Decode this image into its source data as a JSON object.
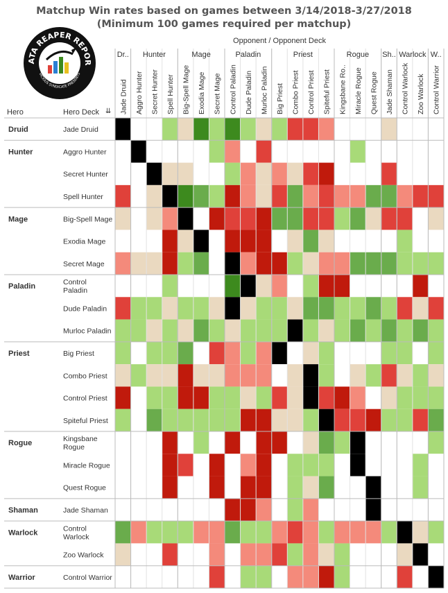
{
  "title_line1": "Matchup Win rates based on games between 3/14/2018-3/27/2018",
  "title_line2": "(Minimum 100 games required per matchup)",
  "opponent_header": "Opponent  /  Opponent Deck",
  "row_header_hero": "Hero",
  "row_header_deck": "Hero Deck",
  "logo": {
    "top_text": "DATA REAPER REPORT",
    "bottom_text": "VICIOUS SYNDICATE PRESENTS"
  },
  "colors": {
    "dark_green": "#3d8a1e",
    "mid_green": "#6aac4c",
    "light_green": "#a8da78",
    "tan": "#ead9c0",
    "salmon": "#f48a7b",
    "red": "#e0413a",
    "dark_red": "#c01a0c",
    "black": "#000000",
    "white": "#ffffff"
  },
  "chart_data": {
    "type": "heatmap",
    "title": "Matchup Win rates based on games between 3/14/2018-3/27/2018",
    "subtitle": "(Minimum 100 games required per matchup)",
    "value_scale": [
      "dark_red",
      "red",
      "salmon",
      "tan",
      "light_green",
      "mid_green",
      "dark_green"
    ],
    "col_groups": [
      {
        "label": "Dr..",
        "span": 1
      },
      {
        "label": "Hunter",
        "span": 3
      },
      {
        "label": "Mage",
        "span": 3
      },
      {
        "label": "Paladin",
        "span": 3
      },
      {
        "label": "Priest",
        "span": 4
      },
      {
        "label": "Rogue",
        "span": 3
      },
      {
        "label": "Sh..",
        "span": 1
      },
      {
        "label": "Warlock",
        "span": 2
      },
      {
        "label": "W..",
        "span": 1
      }
    ],
    "columns": [
      "Jade Druid",
      "Aggro Hunter",
      "Secret Hunter",
      "Spell Hunter",
      "Big-Spell Mage",
      "Exodia Mage",
      "Secret Mage",
      "Control Paladin",
      "Dude Paladin",
      "Murloc Paladin",
      "Big Priest",
      "Combo Priest",
      "Control Priest",
      "Spiteful Priest",
      "Kingsbane Ro..",
      "Miracle Rogue",
      "Quest Rogue",
      "Jade Shaman",
      "Control Warlock",
      "Zoo Warlock",
      "Control Warrior"
    ],
    "row_groups": [
      {
        "label": "Druid",
        "span": 1
      },
      {
        "label": "Hunter",
        "span": 3
      },
      {
        "label": "Mage",
        "span": 3
      },
      {
        "label": "Paladin",
        "span": 3
      },
      {
        "label": "Priest",
        "span": 4
      },
      {
        "label": "Rogue",
        "span": 3
      },
      {
        "label": "Shaman",
        "span": 1
      },
      {
        "label": "Warlock",
        "span": 2
      },
      {
        "label": "Warrior",
        "span": 1
      }
    ],
    "rows": [
      {
        "deck": [
          "Jade Druid"
        ],
        "cells": "K003T4G4LT3RRSW9AT"
      },
      {
        "deck": [
          "Aggro Hunter"
        ],
        "cells": "0K00003S0R00000G00"
      },
      {
        "deck": [
          "Secret Hunter"
        ],
        "cells": "00KTT003STSTRX000R00"
      },
      {
        "deck": [
          "Spell Hunter"
        ],
        "cells": "R0TK4MLXSTRMSRSSMMSRRRM00"
      },
      {
        "deck": [
          "Big-Spell Mage"
        ],
        "cells": "T0TSK0XRRXMMRRGMTRR0T"
      },
      {
        "deck": [
          "Exodia Mage"
        ],
        "cells": "000XTK0XXX0TMT0000G00"
      },
      {
        "deck": [
          "Secret Mage"
        ],
        "cells": "STTXLM0KSXXGTSSMMMLLGTG"
      },
      {
        "deck": [
          "Control",
          "Paladin"
        ],
        "cells": "000L0004KTS0GXX0000X00"
      },
      {
        "deck": [
          "Dude Paladin"
        ],
        "cells": "RGGTLLTKTGGTMMGGMGRTR"
      },
      {
        "deck": [
          "Murloc Paladin"
        ],
        "cells": "GGTGTMLTLGGKLTGMLMLMGGG"
      },
      {
        "deck": [
          "Big Priest"
        ],
        "cells": "G0GLM0RSGSK0TG000LG0G0"
      },
      {
        "deck": [
          "Combo Priest"
        ],
        "cells": "TGTTXTTSSS0TKG0TGRTGTG"
      },
      {
        "deck": [
          "Control Priest"
        ],
        "cells": "X0GGXXGGTLRTKRXS0TGGG0"
      },
      {
        "deck": [
          "Spiteful Priest"
        ],
        "cells": "G0MGGGGLXXTTGKRRXGGRM"
      },
      {
        "deck": [
          "Kingsbane",
          "Rogue"
        ],
        "cells": "000X0G0X0XX0TMGK0000G00"
      },
      {
        "deck": [
          "Miracle Rogue"
        ],
        "cells": "000XR0X0SX0GGG0K000G00"
      },
      {
        "deck": [
          "Quest Rogue"
        ],
        "cells": "000X00X0XX0GTM00K00G00"
      },
      {
        "deck": [
          "Jade Shaman"
        ],
        "cells": "0000000XXS0GS000K0000"
      },
      {
        "deck": [
          "Control",
          "Warlock"
        ],
        "cells": "MSGGGSSMGGSRSGSSSGKTG"
      },
      {
        "deck": [
          "Zoo Warlock"
        ],
        "cells": "T00R00S0SSRGSTG000TK0"
      },
      {
        "deck": [
          "Control Warrior"
        ],
        "cells": "000000R0GG0SSXG000R0K"
      }
    ],
    "legend": "none",
    "grid": true
  }
}
